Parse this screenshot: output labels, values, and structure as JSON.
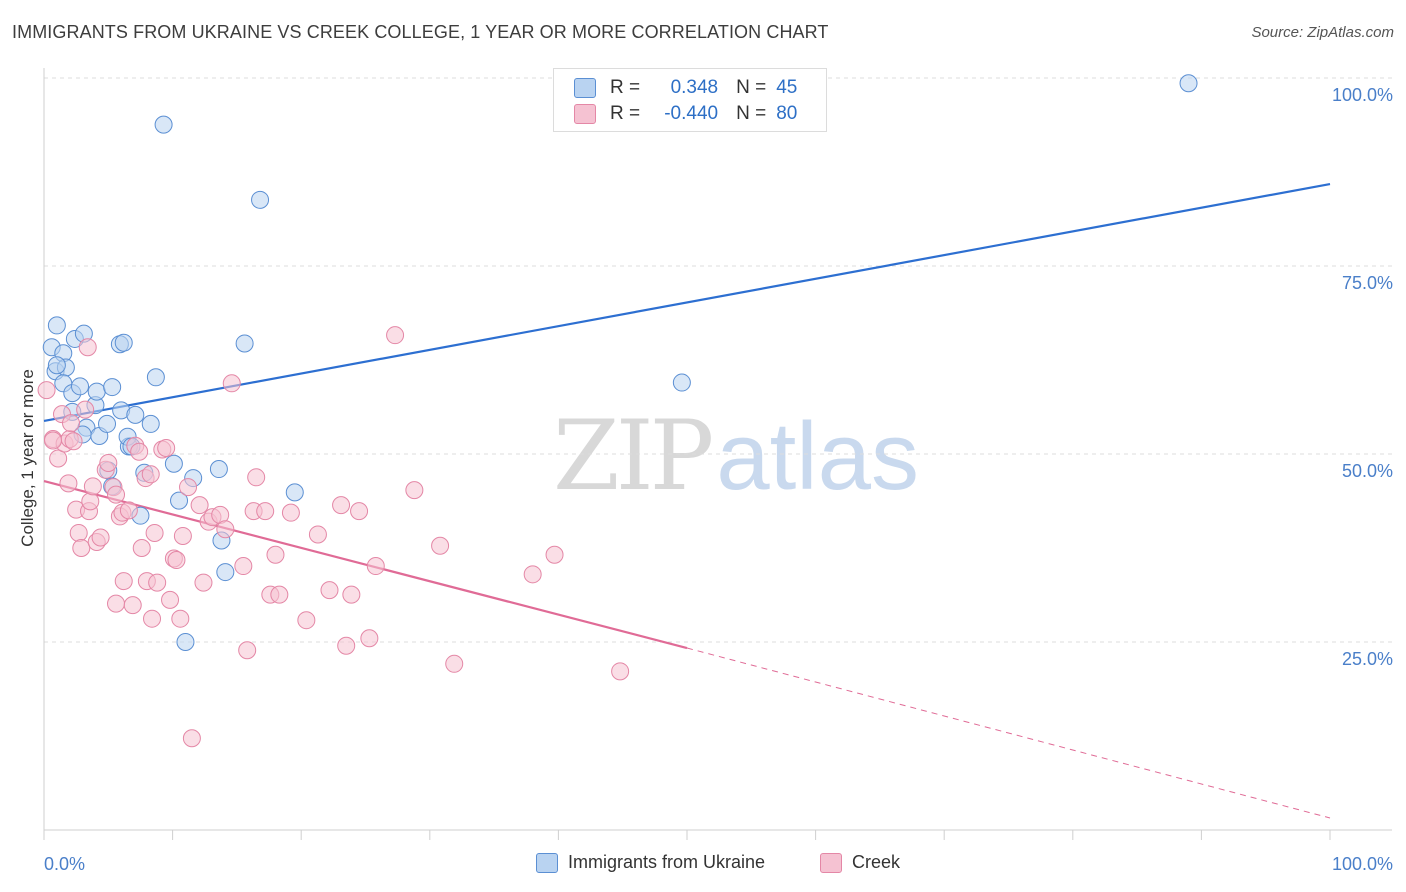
{
  "header": {
    "title": "IMMIGRANTS FROM UKRAINE VS CREEK COLLEGE, 1 YEAR OR MORE CORRELATION CHART",
    "source": "Source: ZipAtlas.com"
  },
  "watermark": {
    "zip": "ZIP",
    "atlas": "atlas"
  },
  "legend_top": {
    "rows": [
      {
        "r_key": "R =",
        "r_val": "0.348",
        "n_key": "N =",
        "n_val": "45"
      },
      {
        "r_key": "R =",
        "r_val": "-0.440",
        "n_key": "N =",
        "n_val": "80"
      }
    ]
  },
  "legend_bottom": {
    "items": [
      "Immigrants from Ukraine",
      "Creek"
    ]
  },
  "colors": {
    "blue_fill": "#b9d3f1",
    "blue_stroke": "#5b8fd3",
    "blue_line": "#2d6fd1",
    "pink_fill": "#f5c2d2",
    "pink_stroke": "#e487a6",
    "pink_line": "#e06b96",
    "tick_text": "#4a7fc9",
    "grid": "#dddddd"
  },
  "chart_data": {
    "type": "scatter",
    "ylabel": "College, 1 year or more",
    "xlim": [
      0,
      100
    ],
    "ylim": [
      0,
      100
    ],
    "x_tick_labels": [
      {
        "value": 0,
        "label": "0.0%"
      },
      {
        "value": 100,
        "label": "100.0%"
      }
    ],
    "y_tick_labels": [
      {
        "value": 100,
        "label": "100.0%"
      },
      {
        "value": 75,
        "label": "75.0%"
      },
      {
        "value": 50,
        "label": "50.0%"
      },
      {
        "value": 25,
        "label": "25.0%"
      }
    ],
    "grid": true,
    "series": [
      {
        "name": "Immigrants from Ukraine",
        "color": "blue",
        "points": [
          [
            0.6,
            64.2
          ],
          [
            0.9,
            61.0
          ],
          [
            1.0,
            67.1
          ],
          [
            1.5,
            63.4
          ],
          [
            1.7,
            61.5
          ],
          [
            1.5,
            59.4
          ],
          [
            2.2,
            58.1
          ],
          [
            2.4,
            65.3
          ],
          [
            3.1,
            66.0
          ],
          [
            2.8,
            59.0
          ],
          [
            4.0,
            56.5
          ],
          [
            4.1,
            58.3
          ],
          [
            3.3,
            53.5
          ],
          [
            4.3,
            52.4
          ],
          [
            4.9,
            54.0
          ],
          [
            5.3,
            58.9
          ],
          [
            5.9,
            64.6
          ],
          [
            6.2,
            64.8
          ],
          [
            6.0,
            55.8
          ],
          [
            6.6,
            51.0
          ],
          [
            7.1,
            55.2
          ],
          [
            6.5,
            52.3
          ],
          [
            8.3,
            54.0
          ],
          [
            5.0,
            47.8
          ],
          [
            5.3,
            45.7
          ],
          [
            7.8,
            47.5
          ],
          [
            8.7,
            60.2
          ],
          [
            10.1,
            48.7
          ],
          [
            10.5,
            43.8
          ],
          [
            11.6,
            46.8
          ],
          [
            13.6,
            48.0
          ],
          [
            13.8,
            38.5
          ],
          [
            14.1,
            34.3
          ],
          [
            7.5,
            41.8
          ],
          [
            15.6,
            64.7
          ],
          [
            16.8,
            83.8
          ],
          [
            9.3,
            93.8
          ],
          [
            19.5,
            44.9
          ],
          [
            11.0,
            25.0
          ],
          [
            49.6,
            59.5
          ],
          [
            89.0,
            99.3
          ],
          [
            1.0,
            61.8
          ],
          [
            2.2,
            55.6
          ],
          [
            3.0,
            52.6
          ],
          [
            6.8,
            51.0
          ]
        ]
      },
      {
        "name": "Creek",
        "color": "pink",
        "points": [
          [
            0.2,
            58.5
          ],
          [
            0.7,
            52.0
          ],
          [
            1.1,
            49.4
          ],
          [
            1.4,
            55.3
          ],
          [
            1.6,
            51.4
          ],
          [
            2.0,
            52.0
          ],
          [
            2.1,
            54.1
          ],
          [
            2.3,
            51.7
          ],
          [
            2.5,
            42.6
          ],
          [
            2.7,
            39.5
          ],
          [
            2.9,
            37.5
          ],
          [
            3.2,
            55.9
          ],
          [
            3.4,
            64.2
          ],
          [
            3.5,
            42.4
          ],
          [
            3.6,
            43.7
          ],
          [
            3.8,
            45.7
          ],
          [
            4.1,
            38.3
          ],
          [
            4.4,
            38.9
          ],
          [
            4.8,
            47.9
          ],
          [
            5.0,
            48.8
          ],
          [
            5.4,
            45.6
          ],
          [
            5.6,
            44.6
          ],
          [
            5.6,
            30.1
          ],
          [
            5.9,
            41.7
          ],
          [
            6.1,
            42.2
          ],
          [
            6.2,
            33.1
          ],
          [
            6.6,
            42.5
          ],
          [
            6.9,
            29.9
          ],
          [
            7.1,
            51.1
          ],
          [
            7.4,
            50.3
          ],
          [
            7.6,
            37.5
          ],
          [
            7.9,
            46.8
          ],
          [
            8.0,
            33.1
          ],
          [
            8.3,
            47.3
          ],
          [
            8.4,
            28.1
          ],
          [
            8.6,
            39.5
          ],
          [
            8.8,
            32.9
          ],
          [
            9.2,
            50.6
          ],
          [
            9.5,
            50.8
          ],
          [
            9.8,
            30.6
          ],
          [
            10.1,
            36.1
          ],
          [
            10.3,
            35.9
          ],
          [
            10.6,
            28.1
          ],
          [
            10.8,
            39.1
          ],
          [
            11.2,
            45.6
          ],
          [
            11.5,
            12.2
          ],
          [
            12.1,
            43.2
          ],
          [
            12.4,
            32.9
          ],
          [
            12.8,
            41.0
          ],
          [
            13.1,
            41.6
          ],
          [
            13.7,
            41.9
          ],
          [
            14.1,
            40.0
          ],
          [
            14.6,
            59.4
          ],
          [
            15.5,
            35.1
          ],
          [
            15.8,
            23.9
          ],
          [
            16.3,
            42.4
          ],
          [
            16.5,
            46.9
          ],
          [
            17.2,
            42.4
          ],
          [
            17.6,
            31.3
          ],
          [
            18.0,
            36.6
          ],
          [
            18.3,
            31.3
          ],
          [
            19.2,
            42.2
          ],
          [
            20.4,
            27.9
          ],
          [
            21.3,
            39.3
          ],
          [
            22.2,
            31.9
          ],
          [
            23.1,
            43.2
          ],
          [
            23.5,
            24.5
          ],
          [
            23.9,
            31.3
          ],
          [
            24.5,
            42.4
          ],
          [
            25.3,
            25.5
          ],
          [
            25.8,
            35.1
          ],
          [
            27.3,
            65.8
          ],
          [
            28.8,
            45.2
          ],
          [
            30.8,
            37.8
          ],
          [
            31.9,
            22.1
          ],
          [
            38.0,
            34.0
          ],
          [
            39.7,
            36.6
          ],
          [
            44.8,
            21.1
          ],
          [
            1.9,
            46.1
          ],
          [
            0.7,
            51.8
          ]
        ]
      }
    ],
    "trendlines": [
      {
        "series": "Immigrants from Ukraine",
        "x": [
          0,
          100
        ],
        "y": [
          54.4,
          85.9
        ],
        "style": "solid"
      },
      {
        "series": "Creek",
        "x": [
          0,
          50
        ],
        "y": [
          46.4,
          24.2
        ],
        "style": "solid"
      },
      {
        "series": "Creek",
        "x": [
          50,
          100
        ],
        "y": [
          24.2,
          1.6
        ],
        "style": "dashed"
      }
    ]
  }
}
